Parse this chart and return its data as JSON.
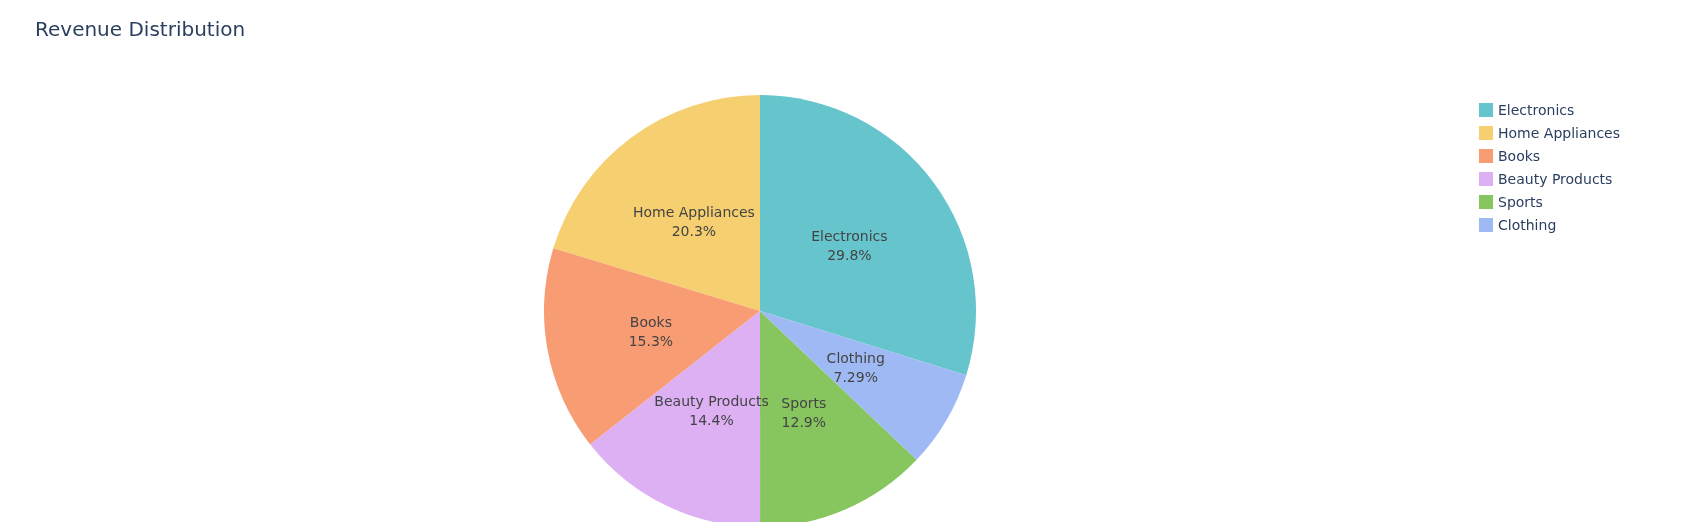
{
  "chart_data": {
    "type": "pie",
    "title": "Revenue Distribution",
    "categories": [
      "Electronics",
      "Home Appliances",
      "Books",
      "Beauty Products",
      "Sports",
      "Clothing"
    ],
    "values": [
      29.8,
      20.3,
      15.3,
      14.4,
      12.9,
      7.29
    ],
    "colors": [
      "#66c5cc",
      "#f6cf71",
      "#f89c74",
      "#dcb0f2",
      "#87c55f",
      "#9eb9f3"
    ],
    "value_labels": [
      "29.8%",
      "20.3%",
      "15.3%",
      "14.4%",
      "12.9%",
      "7.29%"
    ],
    "legend": "top right"
  }
}
